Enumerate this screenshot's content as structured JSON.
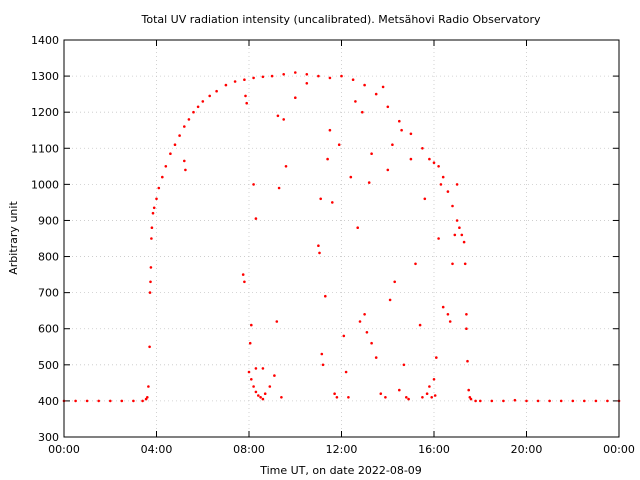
{
  "chart_data": {
    "type": "scatter",
    "title": "Total UV radiation intensity (uncalibrated). Metsähovi Radio Observatory",
    "xlabel": "Time UT, on date 2022-08-09",
    "ylabel": "Arbitrary unit",
    "xlim": [
      0,
      24
    ],
    "ylim": [
      300,
      1400
    ],
    "x_ticks": [
      {
        "value": 0,
        "label": "00:00"
      },
      {
        "value": 4,
        "label": "04:00"
      },
      {
        "value": 8,
        "label": "08:00"
      },
      {
        "value": 12,
        "label": "12:00"
      },
      {
        "value": 16,
        "label": "16:00"
      },
      {
        "value": 20,
        "label": "20:00"
      },
      {
        "value": 24,
        "label": "00:00"
      }
    ],
    "y_ticks": [
      300,
      400,
      500,
      600,
      700,
      800,
      900,
      1000,
      1100,
      1200,
      1300,
      1400
    ],
    "grid": true,
    "series": [
      {
        "color": "#ff0000",
        "points": [
          [
            0.0,
            400
          ],
          [
            0.5,
            400
          ],
          [
            1.0,
            400
          ],
          [
            1.5,
            400
          ],
          [
            2.0,
            400
          ],
          [
            2.5,
            400
          ],
          [
            3.0,
            400
          ],
          [
            3.4,
            400
          ],
          [
            3.55,
            405
          ],
          [
            3.6,
            410
          ],
          [
            3.65,
            440
          ],
          [
            3.7,
            550
          ],
          [
            3.72,
            700
          ],
          [
            3.74,
            730
          ],
          [
            3.76,
            770
          ],
          [
            3.78,
            850
          ],
          [
            3.8,
            880
          ],
          [
            3.85,
            920
          ],
          [
            3.9,
            935
          ],
          [
            4.0,
            960
          ],
          [
            4.1,
            990
          ],
          [
            4.25,
            1020
          ],
          [
            4.4,
            1050
          ],
          [
            4.6,
            1085
          ],
          [
            4.8,
            1110
          ],
          [
            5.0,
            1135
          ],
          [
            5.2,
            1160
          ],
          [
            5.4,
            1180
          ],
          [
            5.6,
            1200
          ],
          [
            5.8,
            1215
          ],
          [
            6.0,
            1230
          ],
          [
            6.3,
            1245
          ],
          [
            6.6,
            1258
          ],
          [
            7.0,
            1275
          ],
          [
            7.4,
            1285
          ],
          [
            7.8,
            1290
          ],
          [
            8.2,
            1295
          ],
          [
            8.6,
            1298
          ],
          [
            9.0,
            1300
          ],
          [
            9.5,
            1305
          ],
          [
            10.0,
            1310
          ],
          [
            10.5,
            1305
          ],
          [
            11.0,
            1300
          ],
          [
            11.5,
            1295
          ],
          [
            12.0,
            1300
          ],
          [
            12.5,
            1290
          ],
          [
            13.0,
            1275
          ],
          [
            13.5,
            1250
          ],
          [
            14.0,
            1215
          ],
          [
            14.5,
            1175
          ],
          [
            15.0,
            1140
          ],
          [
            15.5,
            1100
          ],
          [
            15.8,
            1070
          ],
          [
            16.0,
            1060
          ],
          [
            16.2,
            1050
          ],
          [
            16.4,
            1020
          ],
          [
            16.6,
            980
          ],
          [
            16.8,
            940
          ],
          [
            17.0,
            900
          ],
          [
            17.1,
            880
          ],
          [
            17.2,
            860
          ],
          [
            17.3,
            840
          ],
          [
            17.4,
            600
          ],
          [
            17.5,
            430
          ],
          [
            17.55,
            410
          ],
          [
            17.6,
            405
          ],
          [
            17.8,
            400
          ],
          [
            18.0,
            400
          ],
          [
            18.5,
            400
          ],
          [
            19.0,
            400
          ],
          [
            19.5,
            402
          ],
          [
            20.0,
            400
          ],
          [
            20.5,
            400
          ],
          [
            21.0,
            400
          ],
          [
            21.5,
            400
          ],
          [
            22.0,
            400
          ],
          [
            22.5,
            400
          ],
          [
            23.0,
            400
          ],
          [
            23.5,
            400
          ],
          [
            24.0,
            400
          ],
          [
            5.2,
            1065
          ],
          [
            5.25,
            1040
          ],
          [
            7.75,
            750
          ],
          [
            7.8,
            730
          ],
          [
            7.85,
            1245
          ],
          [
            7.9,
            1225
          ],
          [
            8.05,
            560
          ],
          [
            8.1,
            610
          ],
          [
            8.2,
            1000
          ],
          [
            8.3,
            905
          ],
          [
            8.0,
            480
          ],
          [
            8.1,
            460
          ],
          [
            8.2,
            440
          ],
          [
            8.3,
            425
          ],
          [
            8.4,
            415
          ],
          [
            8.5,
            410
          ],
          [
            8.6,
            405
          ],
          [
            8.7,
            420
          ],
          [
            8.9,
            440
          ],
          [
            9.1,
            470
          ],
          [
            8.3,
            490
          ],
          [
            8.6,
            490
          ],
          [
            9.2,
            620
          ],
          [
            9.25,
            1190
          ],
          [
            9.3,
            990
          ],
          [
            9.5,
            1180
          ],
          [
            9.6,
            1050
          ],
          [
            9.4,
            410
          ],
          [
            10.0,
            1240
          ],
          [
            10.5,
            1280
          ],
          [
            11.1,
            960
          ],
          [
            11.0,
            830
          ],
          [
            11.05,
            810
          ],
          [
            11.15,
            530
          ],
          [
            11.2,
            500
          ],
          [
            11.3,
            690
          ],
          [
            11.4,
            1070
          ],
          [
            11.5,
            1150
          ],
          [
            11.6,
            950
          ],
          [
            11.7,
            420
          ],
          [
            11.8,
            410
          ],
          [
            11.9,
            1110
          ],
          [
            12.1,
            580
          ],
          [
            12.2,
            480
          ],
          [
            12.3,
            410
          ],
          [
            12.4,
            1020
          ],
          [
            12.6,
            1230
          ],
          [
            12.7,
            880
          ],
          [
            12.8,
            620
          ],
          [
            13.0,
            640
          ],
          [
            13.1,
            590
          ],
          [
            13.2,
            1005
          ],
          [
            13.3,
            560
          ],
          [
            13.5,
            520
          ],
          [
            13.7,
            420
          ],
          [
            13.9,
            410
          ],
          [
            14.0,
            1040
          ],
          [
            14.1,
            680
          ],
          [
            14.3,
            730
          ],
          [
            14.5,
            430
          ],
          [
            14.7,
            500
          ],
          [
            14.8,
            410
          ],
          [
            15.0,
            1070
          ],
          [
            15.2,
            780
          ],
          [
            15.4,
            610
          ],
          [
            15.5,
            410
          ],
          [
            15.7,
            420
          ],
          [
            15.8,
            440
          ],
          [
            16.0,
            460
          ],
          [
            16.1,
            520
          ],
          [
            16.2,
            850
          ],
          [
            16.4,
            660
          ],
          [
            16.6,
            640
          ],
          [
            16.7,
            620
          ],
          [
            16.8,
            780
          ],
          [
            16.9,
            860
          ],
          [
            17.0,
            1000
          ],
          [
            17.35,
            780
          ],
          [
            17.4,
            640
          ],
          [
            17.45,
            510
          ],
          [
            12.9,
            1200
          ],
          [
            13.3,
            1085
          ],
          [
            13.8,
            1270
          ],
          [
            14.2,
            1110
          ],
          [
            14.6,
            1150
          ],
          [
            15.6,
            960
          ],
          [
            16.3,
            1000
          ],
          [
            15.9,
            410
          ],
          [
            16.05,
            415
          ],
          [
            14.9,
            405
          ]
        ]
      }
    ]
  }
}
